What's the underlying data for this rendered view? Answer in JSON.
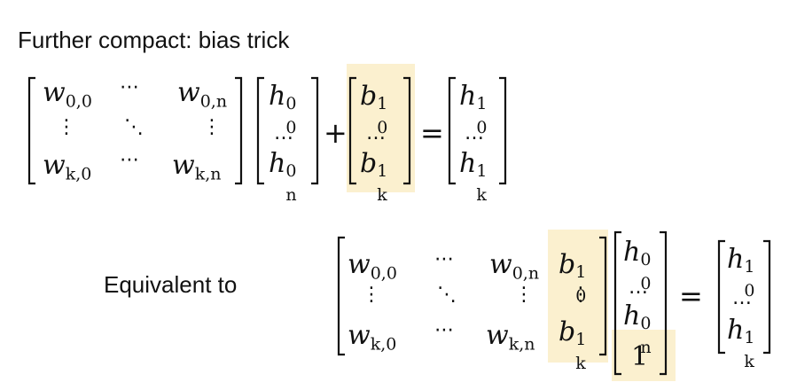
{
  "slide": {
    "title": "Further compact: bias trick",
    "equivalent_label": "Equivalent to",
    "highlight_color": "#fbf0cf"
  },
  "eq1": {
    "w": {
      "a": "w",
      "s00": "0,0",
      "s0n": "0,n",
      "sk0": "k,0",
      "skn": "k,n"
    },
    "h": {
      "a": "h",
      "sup0": "0",
      "sub0": "0",
      "subn": "n",
      "sup1": "1",
      "subk": "k"
    },
    "b": {
      "a": "b",
      "sup": "1",
      "sub0": "0",
      "subk": "k"
    },
    "hdots": "⋯",
    "vdots": "⋮",
    "ddots": "⋱",
    "cdots": "…",
    "plus": "+",
    "equals": "="
  },
  "eq2": {
    "one": "1",
    "equals": "="
  }
}
